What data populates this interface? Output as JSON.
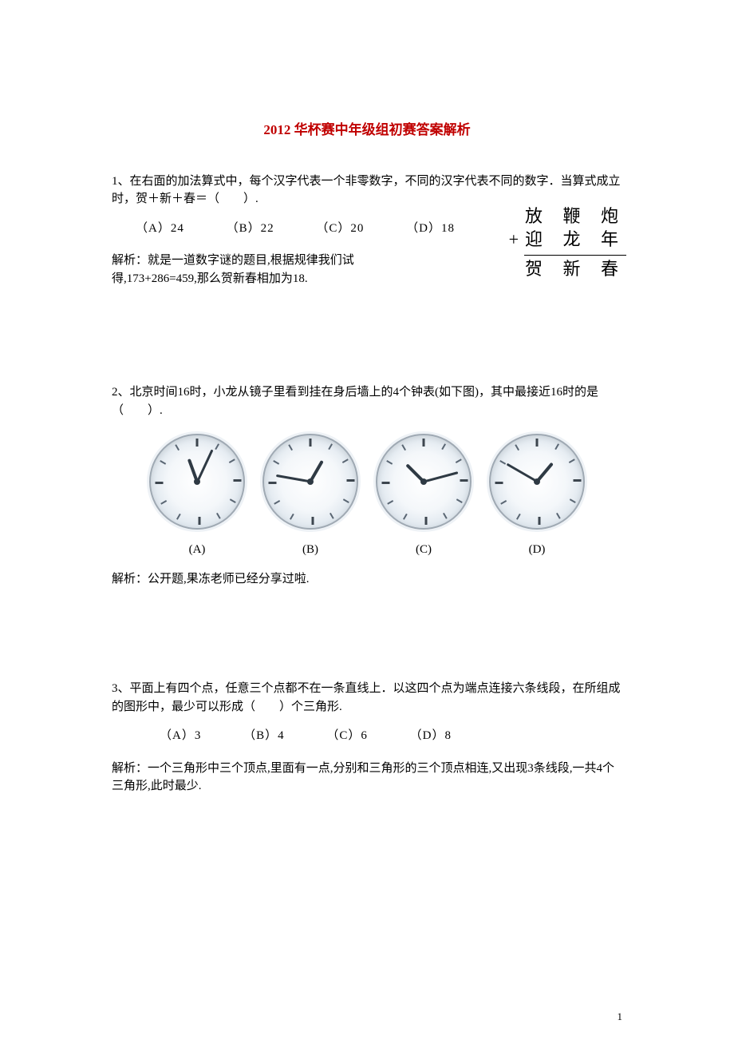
{
  "title": {
    "text": "2012 华杯赛中年级组初赛答案解析",
    "color": "#c00000"
  },
  "q1": {
    "text": "1、在右面的加法算式中，每个汉字代表一个非零数字，不同的汉字代表不同的数字．当算式成立时，贺＋新＋春＝（　　）.",
    "options": {
      "A": "（A）24",
      "B": "（B）22",
      "C": "（C）20",
      "D": "（D）18"
    },
    "figure": {
      "row1": "放 鞭 炮",
      "row2_plus": "+",
      "row2": "迎 龙 年",
      "row3": "贺 新 春"
    },
    "analysis": "解析：就是一道数字谜的题目,根据规律我们试得,173+286=459,那么贺新春相加为18."
  },
  "q2": {
    "text": "2、北京时间16时，小龙从镜子里看到挂在身后墙上的4个钟表(如下图)，其中最接近16时的是（　　）.",
    "clocks": [
      {
        "hour_angle": 340,
        "minute_angle": 25
      },
      {
        "hour_angle": 30,
        "minute_angle": 280
      },
      {
        "hour_angle": 315,
        "minute_angle": 75
      },
      {
        "hour_angle": 40,
        "minute_angle": 300
      }
    ],
    "labels": {
      "A": "(A)",
      "B": "(B)",
      "C": "(C)",
      "D": "(D)"
    },
    "analysis": "解析：公开题,果冻老师已经分享过啦."
  },
  "q3": {
    "text": "3、平面上有四个点，任意三个点都不在一条直线上．以这四个点为端点连接六条线段，在所组成的图形中，最少可以形成（　　）个三角形.",
    "options": {
      "A": "（A）3",
      "B": "（B）4",
      "C": "（C）6",
      "D": "（D）8"
    },
    "analysis": "解析：一个三角形中三个顶点,里面有一点,分别和三角形的三个顶点相连,又出现3条线段,一共4个三角形,此时最少."
  },
  "page_number": "1"
}
